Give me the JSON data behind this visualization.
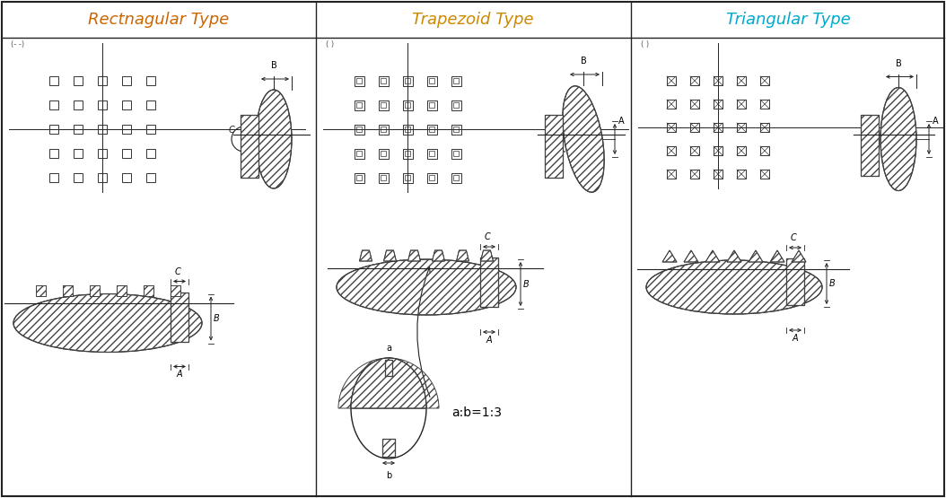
{
  "title_rect": "Rectnagular Type",
  "title_trap": "Trapezoid Type",
  "title_tri": "Triangular Type",
  "title_color_rect": "#cc6600",
  "title_color_trap": "#cc8800",
  "title_color_tri": "#00aacc",
  "bg_color": "#ffffff"
}
